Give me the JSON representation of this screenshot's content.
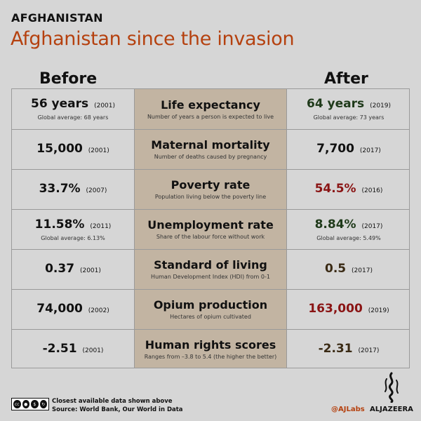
{
  "header": {
    "country": "AFGHANISTAN",
    "headline": "Afghanistan since the invasion",
    "before_label": "Before",
    "after_label": "After"
  },
  "rows": [
    {
      "metric": "Life expectancy",
      "description": "Number of years a person is expected to live",
      "before_value": "56 years",
      "before_year": "(2001)",
      "before_note": "Global average: 68 years",
      "after_value": "64 years",
      "after_year": "(2019)",
      "after_note": "Global average: 73 years",
      "after_color": "#1f3a1a"
    },
    {
      "metric": "Maternal mortality",
      "description": "Number of deaths caused by pregnancy",
      "before_value": "15,000",
      "before_year": "(2001)",
      "before_note": "",
      "after_value": "7,700",
      "after_year": "(2017)",
      "after_note": "",
      "after_color": "#111111"
    },
    {
      "metric": "Poverty rate",
      "description": "Population living below the  poverty line",
      "before_value": "33.7%",
      "before_year": "(2007)",
      "before_note": "",
      "after_value": "54.5%",
      "after_year": "(2016)",
      "after_note": "",
      "after_color": "#8a1414"
    },
    {
      "metric": "Unemployment rate",
      "description": "Share of the labour force without work",
      "before_value": "11.58%",
      "before_year": "(2011)",
      "before_note": "Global average: 6.13%",
      "after_value": "8.84%",
      "after_year": "(2017)",
      "after_note": "Global average: 5.49%",
      "after_color": "#1f3a1a"
    },
    {
      "metric": "Standard of living",
      "description": "Human Development Index (HDI) from 0-1",
      "before_value": "0.37",
      "before_year": "(2001)",
      "before_note": "",
      "after_value": "0.5",
      "after_year": "(2017)",
      "after_note": "",
      "after_color": "#3a2a14"
    },
    {
      "metric": "Opium production",
      "description": "Hectares of opium cultivated",
      "before_value": "74,000",
      "before_year": "(2002)",
      "before_note": "",
      "after_value": "163,000",
      "after_year": "(2019)",
      "after_note": "",
      "after_color": "#8a1414"
    },
    {
      "metric": "Human rights scores",
      "description": "Ranges from –3.8 to 5.4 (the higher the better)",
      "before_value": "-2.51",
      "before_year": "(2001)",
      "before_note": "",
      "after_value": "-2.31",
      "after_year": "(2017)",
      "after_note": "",
      "after_color": "#3a2a14"
    }
  ],
  "footer": {
    "note": "Closest available data shown above",
    "source": "Source: World Bank, Our World in Data",
    "license_text": "BY NC SA",
    "handle": "@AJLabs",
    "brand": "ALJAZEERA"
  }
}
